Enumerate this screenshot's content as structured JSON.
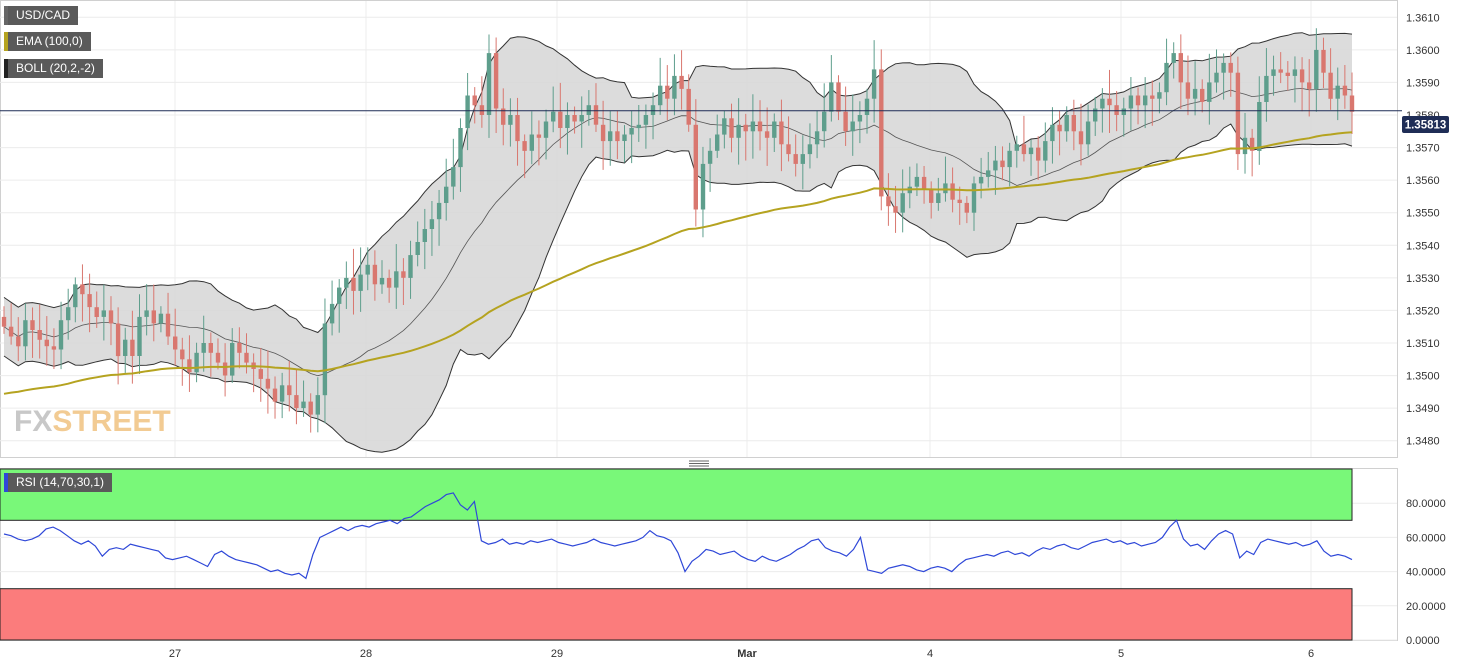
{
  "legend": {
    "symbol": "USD/CAD",
    "ema": "EMA (100,0)",
    "boll": "BOLL (20,2,-2)",
    "rsi": "RSI (14,70,30,1)"
  },
  "watermark": {
    "part1": "FX",
    "part2": "STREET"
  },
  "colors": {
    "up": "#5e9e8c",
    "down": "#d9776f",
    "ema": "#b5a320",
    "band_fill": "#d8d8d8",
    "band_line": "#333333",
    "middle_line": "#555555",
    "rsi_line": "#2f48d8",
    "overbought_fill": "#79f879",
    "oversold_fill": "#fb7c7c",
    "price_line": "#1f2d56",
    "price_label_bg": "#1f2d56"
  },
  "chart_data": [
    {
      "type": "candlestick",
      "title": "USD/CAD",
      "x_tick_labels": [
        "27",
        "28",
        "29",
        "Mar",
        "4",
        "5",
        "6"
      ],
      "y_tick_labels": [
        "1.3480",
        "1.3490",
        "1.3500",
        "1.3510",
        "1.3520",
        "1.3530",
        "1.3540",
        "1.3550",
        "1.3560",
        "1.3570",
        "1.3580",
        "1.3590",
        "1.3600",
        "1.3610"
      ],
      "y_ticks": [
        1.348,
        1.349,
        1.35,
        1.351,
        1.352,
        1.353,
        1.354,
        1.355,
        1.356,
        1.357,
        1.358,
        1.359,
        1.36,
        1.361
      ],
      "ylim": [
        1.3475,
        1.3615
      ],
      "last_price": 1.35813,
      "last_price_label": "1.35813",
      "grid": true,
      "series_overlays": [
        "EMA (100,0)",
        "BOLL (20,2,-2)"
      ],
      "closes": [
        1.3515,
        1.3512,
        1.3509,
        1.3517,
        1.3514,
        1.3511,
        1.3509,
        1.3508,
        1.3517,
        1.3521,
        1.3528,
        1.3525,
        1.3521,
        1.3518,
        1.352,
        1.3516,
        1.3506,
        1.3511,
        1.3506,
        1.3518,
        1.352,
        1.3516,
        1.3519,
        1.3512,
        1.3508,
        1.3505,
        1.3501,
        1.3507,
        1.351,
        1.3507,
        1.3504,
        1.35,
        1.351,
        1.3507,
        1.3504,
        1.3502,
        1.3499,
        1.3496,
        1.3492,
        1.3497,
        1.3494,
        1.349,
        1.3492,
        1.3488,
        1.3494,
        1.3516,
        1.3522,
        1.3527,
        1.353,
        1.3526,
        1.3531,
        1.3534,
        1.3528,
        1.353,
        1.3527,
        1.3532,
        1.353,
        1.3537,
        1.3541,
        1.3545,
        1.3548,
        1.3553,
        1.3558,
        1.3564,
        1.3576,
        1.3586,
        1.3583,
        1.358,
        1.3599,
        1.3582,
        1.3577,
        1.358,
        1.3572,
        1.3569,
        1.3574,
        1.3573,
        1.3578,
        1.3581,
        1.3576,
        1.358,
        1.3578,
        1.358,
        1.3583,
        1.3577,
        1.3572,
        1.3575,
        1.3572,
        1.3574,
        1.3576,
        1.3577,
        1.358,
        1.3583,
        1.3589,
        1.3585,
        1.3592,
        1.3588,
        1.3577,
        1.3551,
        1.3565,
        1.3569,
        1.3574,
        1.3579,
        1.3573,
        1.3577,
        1.3575,
        1.3578,
        1.3575,
        1.3573,
        1.3578,
        1.3571,
        1.3568,
        1.3565,
        1.3568,
        1.3571,
        1.3575,
        1.3581,
        1.359,
        1.3581,
        1.3575,
        1.3578,
        1.358,
        1.3585,
        1.3594,
        1.3555,
        1.3552,
        1.355,
        1.3556,
        1.3558,
        1.3561,
        1.3557,
        1.3553,
        1.3556,
        1.3559,
        1.3554,
        1.3553,
        1.355,
        1.3559,
        1.3561,
        1.3563,
        1.3566,
        1.3564,
        1.3569,
        1.3571,
        1.3568,
        1.357,
        1.3566,
        1.3572,
        1.3577,
        1.3575,
        1.358,
        1.3575,
        1.3571,
        1.3578,
        1.3582,
        1.3585,
        1.3583,
        1.358,
        1.3582,
        1.3586,
        1.3583,
        1.3586,
        1.3585,
        1.3587,
        1.3596,
        1.3599,
        1.359,
        1.3585,
        1.3588,
        1.3584,
        1.359,
        1.3593,
        1.3596,
        1.3593,
        1.3568,
        1.3573,
        1.3569,
        1.3584,
        1.3592,
        1.3594,
        1.3593,
        1.3592,
        1.3594,
        1.359,
        1.3588,
        1.36,
        1.3593,
        1.3585,
        1.3589,
        1.3586,
        1.3581
      ],
      "ema_100_endpoints": [
        [
          0,
          1.3494
        ],
        [
          361,
          1.3572
        ]
      ],
      "bollinger_band_width_typical": 0.003
    },
    {
      "type": "line",
      "title": "RSI (14,70,30,1)",
      "y_tick_labels": [
        "0.0000",
        "20.0000",
        "40.0000",
        "60.0000",
        "80.0000"
      ],
      "y_ticks": [
        0,
        20,
        40,
        60,
        80
      ],
      "ylim": [
        0,
        100
      ],
      "overbought": 70,
      "oversold": 30,
      "values": [
        62,
        61,
        59,
        58,
        59,
        61,
        65,
        66,
        64,
        61,
        58,
        56,
        58,
        55,
        49,
        53,
        54,
        53,
        56,
        55,
        54,
        53,
        52,
        48,
        47,
        48,
        49,
        47,
        45,
        43,
        50,
        52,
        49,
        47,
        46,
        45,
        44,
        42,
        40,
        41,
        39,
        38,
        39,
        36,
        50,
        60,
        62,
        64,
        66,
        64,
        66,
        67,
        66,
        68,
        69,
        70,
        68,
        71,
        72,
        75,
        78,
        80,
        82,
        85,
        86,
        79,
        76,
        81,
        58,
        56,
        57,
        59,
        56,
        57,
        56,
        58,
        57,
        58,
        59,
        57,
        56,
        55,
        56,
        57,
        59,
        57,
        56,
        55,
        56,
        57,
        58,
        60,
        64,
        61,
        60,
        58,
        51,
        40,
        46,
        49,
        53,
        52,
        50,
        51,
        52,
        49,
        47,
        46,
        49,
        47,
        46,
        48,
        50,
        53,
        55,
        58,
        59,
        54,
        52,
        51,
        49,
        53,
        60,
        41,
        40,
        39,
        42,
        43,
        44,
        43,
        41,
        40,
        42,
        43,
        42,
        40,
        44,
        47,
        48,
        49,
        50,
        49,
        51,
        52,
        50,
        51,
        49,
        52,
        54,
        53,
        55,
        56,
        54,
        53,
        55,
        57,
        58,
        59,
        57,
        58,
        56,
        57,
        55,
        56,
        57,
        60,
        66,
        70,
        59,
        55,
        56,
        53,
        58,
        62,
        64,
        62,
        48,
        52,
        50,
        57,
        59,
        58,
        57,
        56,
        57,
        55,
        56,
        58,
        52,
        49,
        50,
        49,
        47
      ]
    }
  ]
}
